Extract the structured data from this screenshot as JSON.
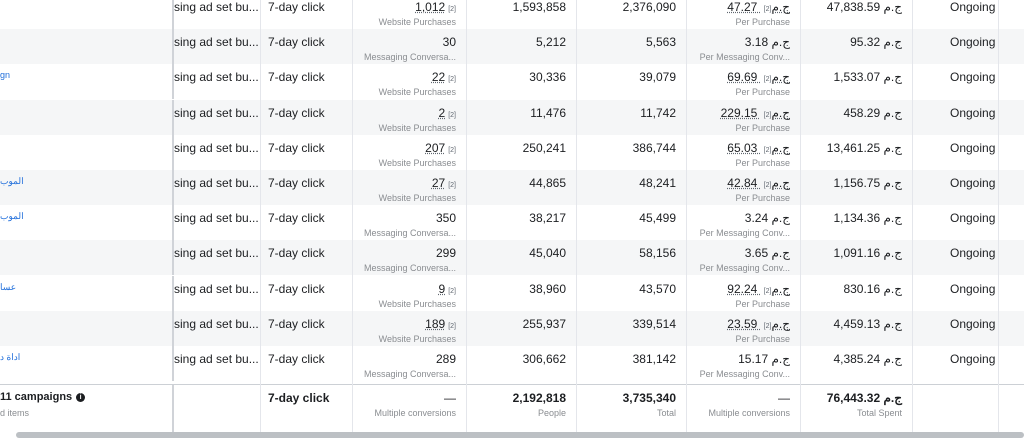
{
  "rows": [
    {
      "campaign": "",
      "ad_set": "sing ad set bu...",
      "attribution": "7-day click",
      "results": "1,012",
      "results_sub": "Website Purchases",
      "results_linked": true,
      "reach": "1,593,858",
      "impressions": "2,376,090",
      "cost": "47.27 ج.م",
      "cost_sub": "Per Purchase",
      "cost_linked": true,
      "spent": "47,838.59 ج.م",
      "status": "Ongoing"
    },
    {
      "campaign": "",
      "ad_set": "sing ad set bu...",
      "attribution": "7-day click",
      "results": "30",
      "results_sub": "Messaging Conversa...",
      "results_linked": false,
      "reach": "5,212",
      "impressions": "5,563",
      "cost": "3.18 ج.م",
      "cost_sub": "Per Messaging Conv...",
      "cost_linked": false,
      "spent": "95.32 ج.م",
      "status": "Ongoing"
    },
    {
      "campaign": "gn",
      "ad_set": "sing ad set bu...",
      "attribution": "7-day click",
      "results": "22",
      "results_sub": "Website Purchases",
      "results_linked": true,
      "reach": "30,336",
      "impressions": "39,079",
      "cost": "69.69 ج.م",
      "cost_sub": "Per Purchase",
      "cost_linked": true,
      "spent": "1,533.07 ج.م",
      "status": "Ongoing"
    },
    {
      "campaign": "",
      "ad_set": "sing ad set bu...",
      "attribution": "7-day click",
      "results": "2",
      "results_sub": "Website Purchases",
      "results_linked": true,
      "reach": "11,476",
      "impressions": "11,742",
      "cost": "229.15 ج.م",
      "cost_sub": "Per Purchase",
      "cost_linked": true,
      "spent": "458.29 ج.م",
      "status": "Ongoing"
    },
    {
      "campaign": "",
      "ad_set": "sing ad set bu...",
      "attribution": "7-day click",
      "results": "207",
      "results_sub": "Website Purchases",
      "results_linked": true,
      "reach": "250,241",
      "impressions": "386,744",
      "cost": "65.03 ج.م",
      "cost_sub": "Per Purchase",
      "cost_linked": true,
      "spent": "13,461.25 ج.م",
      "status": "Ongoing"
    },
    {
      "campaign": "الموب",
      "ad_set": "sing ad set bu...",
      "attribution": "7-day click",
      "results": "27",
      "results_sub": "Website Purchases",
      "results_linked": true,
      "reach": "44,865",
      "impressions": "48,241",
      "cost": "42.84 ج.م",
      "cost_sub": "Per Purchase",
      "cost_linked": true,
      "spent": "1,156.75 ج.م",
      "status": "Ongoing"
    },
    {
      "campaign": "الموب",
      "ad_set": "sing ad set bu...",
      "attribution": "7-day click",
      "results": "350",
      "results_sub": "Messaging Conversa...",
      "results_linked": false,
      "reach": "38,217",
      "impressions": "45,499",
      "cost": "3.24 ج.م",
      "cost_sub": "Per Messaging Conv...",
      "cost_linked": false,
      "spent": "1,134.36 ج.م",
      "status": "Ongoing"
    },
    {
      "campaign": "",
      "ad_set": "sing ad set bu...",
      "attribution": "7-day click",
      "results": "299",
      "results_sub": "Messaging Conversa...",
      "results_linked": false,
      "reach": "45,040",
      "impressions": "58,156",
      "cost": "3.65 ج.م",
      "cost_sub": "Per Messaging Conv...",
      "cost_linked": false,
      "spent": "1,091.16 ج.م",
      "status": "Ongoing"
    },
    {
      "campaign": "عسا",
      "ad_set": "sing ad set bu...",
      "attribution": "7-day click",
      "results": "9",
      "results_sub": "Website Purchases",
      "results_linked": true,
      "reach": "38,960",
      "impressions": "43,570",
      "cost": "92.24 ج.م",
      "cost_sub": "Per Purchase",
      "cost_linked": true,
      "spent": "830.16 ج.م",
      "status": "Ongoing"
    },
    {
      "campaign": "",
      "ad_set": "sing ad set bu...",
      "attribution": "7-day click",
      "results": "189",
      "results_sub": "Website Purchases",
      "results_linked": true,
      "reach": "255,937",
      "impressions": "339,514",
      "cost": "23.59 ج.م",
      "cost_sub": "Per Purchase",
      "cost_linked": true,
      "spent": "4,459.13 ج.م",
      "status": "Ongoing"
    },
    {
      "campaign": "اداة د",
      "ad_set": "sing ad set bu...",
      "attribution": "7-day click",
      "results": "289",
      "results_sub": "Messaging Conversa...",
      "results_linked": false,
      "reach": "306,662",
      "impressions": "381,142",
      "cost": "15.17 ج.م",
      "cost_sub": "Per Messaging Conv...",
      "cost_linked": false,
      "spent": "4,385.24 ج.م",
      "status": "Ongoing"
    }
  ],
  "totals": {
    "label": "11 campaigns",
    "label_sub": "d items",
    "attribution": "7-day click",
    "results": "—",
    "results_sub": "Multiple conversions",
    "reach": "2,192,818",
    "reach_sub": "People",
    "impressions": "3,735,340",
    "impressions_sub": "Total",
    "cost": "—",
    "cost_sub": "Multiple conversions",
    "spent": "76,443.32 ج.م",
    "spent_sub": "Total Spent"
  },
  "superscript": "[2]",
  "icons": {
    "info": "info-icon"
  },
  "colors": {
    "link": "#216fdb",
    "alt_row": "#f5f6f7",
    "scrollbar": "#bcc0c4"
  }
}
